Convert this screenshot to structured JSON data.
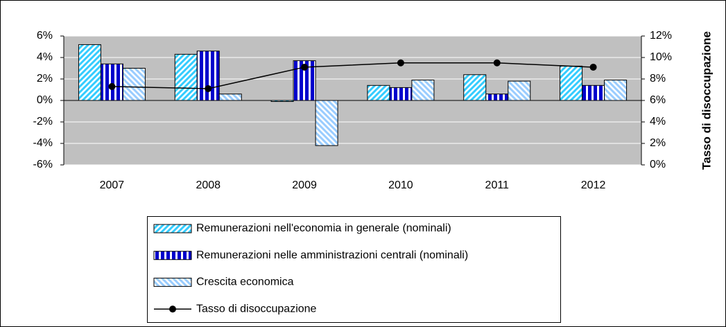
{
  "chart_data": {
    "type": "bar",
    "categories": [
      "2007",
      "2008",
      "2009",
      "2010",
      "2011",
      "2012"
    ],
    "series": [
      {
        "name": "Remunerazioni nell'economia in generale (nominali)",
        "color": "#33ccff",
        "values": [
          5.2,
          4.3,
          -0.1,
          1.4,
          2.4,
          3.2
        ]
      },
      {
        "name": "Remunerazioni nelle amministrazioni centrali (nominali)",
        "color": "#0000cc",
        "values": [
          3.4,
          4.6,
          3.7,
          1.2,
          0.6,
          1.4
        ]
      },
      {
        "name": "Crescita economica",
        "color": "#99ccff",
        "values": [
          3.0,
          0.6,
          -4.2,
          1.9,
          1.8,
          1.9
        ]
      },
      {
        "name": "Tasso di disoccupazione",
        "color": "#000000",
        "type": "line",
        "axis": "y2",
        "values": [
          7.3,
          7.1,
          9.1,
          9.5,
          9.5,
          9.1
        ]
      }
    ],
    "ylim": [
      -6,
      6
    ],
    "yticks": [
      {
        "value": -6,
        "label": "-6%"
      },
      {
        "value": -4,
        "label": "-4%"
      },
      {
        "value": -2,
        "label": "-2%"
      },
      {
        "value": 0,
        "label": "0%"
      },
      {
        "value": 2,
        "label": "2%"
      },
      {
        "value": 4,
        "label": "4%"
      },
      {
        "value": 6,
        "label": "6%"
      }
    ],
    "y2lim": [
      0,
      12
    ],
    "y2ticks": [
      {
        "value": 0,
        "label": "0%"
      },
      {
        "value": 2,
        "label": "2%"
      },
      {
        "value": 4,
        "label": "4%"
      },
      {
        "value": 6,
        "label": "6%"
      },
      {
        "value": 8,
        "label": "8%"
      },
      {
        "value": 10,
        "label": "10%"
      },
      {
        "value": 12,
        "label": "12%"
      }
    ],
    "y2label": "Tasso di disoccupazione",
    "grid": true,
    "legend": "bottom"
  }
}
